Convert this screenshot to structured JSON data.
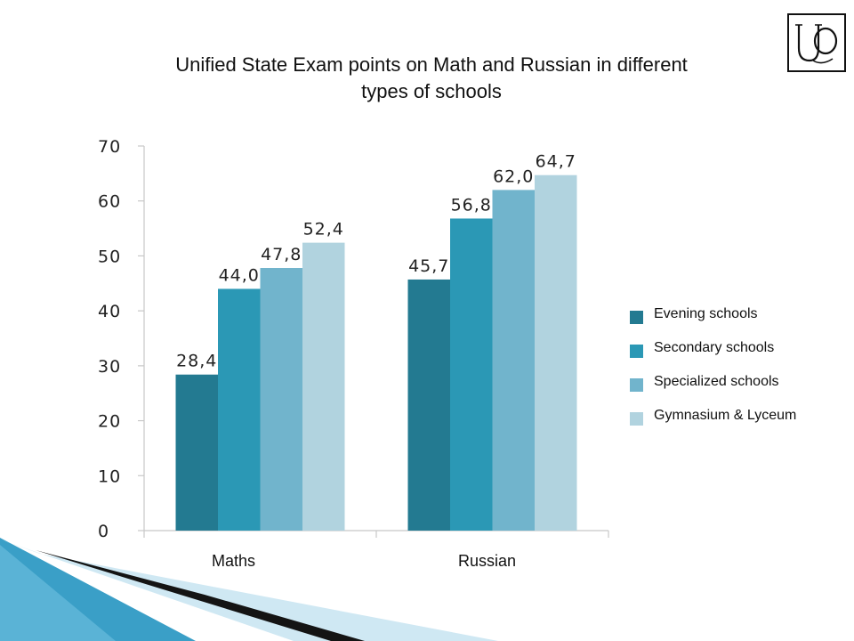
{
  "slide": {
    "title_lines": [
      "Unified State Exam points on Math and Russian in different",
      "types of schools"
    ],
    "logo_icon": "uo-monogram-logo-icon"
  },
  "colors": {
    "series": [
      "#237a91",
      "#2b98b5",
      "#71b4cc",
      "#b1d3df"
    ],
    "axis": "#c7c7c7",
    "tick_text": "#222222",
    "decor_dark": "#141414",
    "decor_blue": "#3a9fc7",
    "decor_light": "#cfe8f3"
  },
  "chart_data": {
    "type": "bar",
    "title": "",
    "xlabel": "",
    "ylabel": "",
    "categories": [
      "Maths",
      "Russian"
    ],
    "ylim": [
      0,
      70
    ],
    "yticks": [
      0,
      10,
      20,
      30,
      40,
      50,
      60,
      70
    ],
    "grid": false,
    "legend_position": "right",
    "series": [
      {
        "name": "Evening schools",
        "values": [
          28.4,
          45.7
        ],
        "labels": [
          "28,4",
          "45,7"
        ]
      },
      {
        "name": "Secondary schools",
        "values": [
          44.0,
          56.8
        ],
        "labels": [
          "44,0",
          "56,8"
        ]
      },
      {
        "name": "Specialized schools",
        "values": [
          47.8,
          62.0
        ],
        "labels": [
          "47,8",
          "62,0"
        ]
      },
      {
        "name": "Gymnasium & Lyceum",
        "values": [
          52.4,
          64.7
        ],
        "labels": [
          "52,4",
          "64,7"
        ]
      }
    ]
  }
}
